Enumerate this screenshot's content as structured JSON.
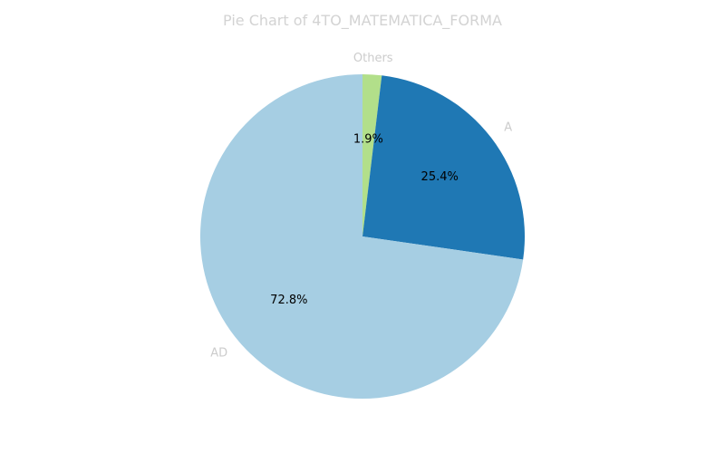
{
  "chart_data": {
    "type": "pie",
    "title": "Pie Chart of 4TO_MATEMATICA_FORMA",
    "start_angle_deg": 90,
    "direction": "clockwise",
    "slices": [
      {
        "label": "Others",
        "value": 1.9,
        "pct_label": "1.9%",
        "color": "#b2df8a"
      },
      {
        "label": "A",
        "value": 25.4,
        "pct_label": "25.4%",
        "color": "#1f78b4"
      },
      {
        "label": "AD",
        "value": 72.8,
        "pct_label": "72.8%",
        "color": "#a6cee3"
      }
    ]
  }
}
